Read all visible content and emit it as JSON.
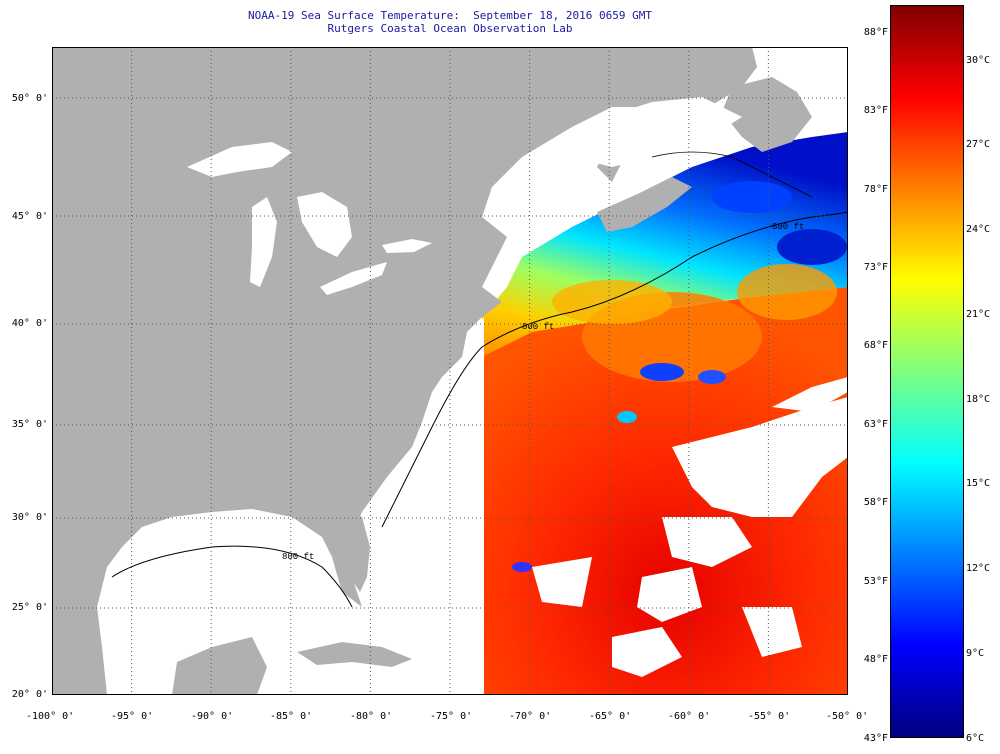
{
  "header": {
    "line1": "NOAA-19 Sea Surface Temperature:  September 18, 2016 0659 GMT",
    "line2": "Rutgers Coastal Ocean Observation Lab"
  },
  "map": {
    "lat_labels": [
      "50° 0'",
      "45° 0'",
      "40° 0'",
      "35° 0'",
      "30° 0'",
      "25° 0'",
      "20° 0'"
    ],
    "lon_labels": [
      "-100° 0'",
      "-95° 0'",
      "-90° 0'",
      "-85° 0'",
      "-80° 0'",
      "-75° 0'",
      "-70° 0'",
      "-65° 0'",
      "-60° 0'",
      "-55° 0'",
      "-50° 0'"
    ],
    "contour_label": "800 ft",
    "colors": {
      "land": "#b0b0b0",
      "cloud": "#ffffff",
      "grid": "#555555"
    }
  },
  "colorbar": {
    "fahrenheit_labels": [
      "88°F",
      "83°F",
      "78°F",
      "73°F",
      "68°F",
      "63°F",
      "58°F",
      "53°F",
      "48°F",
      "43°F"
    ],
    "celsius_labels": [
      "30°C",
      "27°C",
      "24°C",
      "21°C",
      "18°C",
      "15°C",
      "12°C",
      "9°C",
      "6°C"
    ],
    "stops": [
      "#00007f",
      "#0000ff",
      "#007fff",
      "#00ffff",
      "#7fff7f",
      "#ffff00",
      "#ff7f00",
      "#ff0000",
      "#7f0000"
    ]
  }
}
